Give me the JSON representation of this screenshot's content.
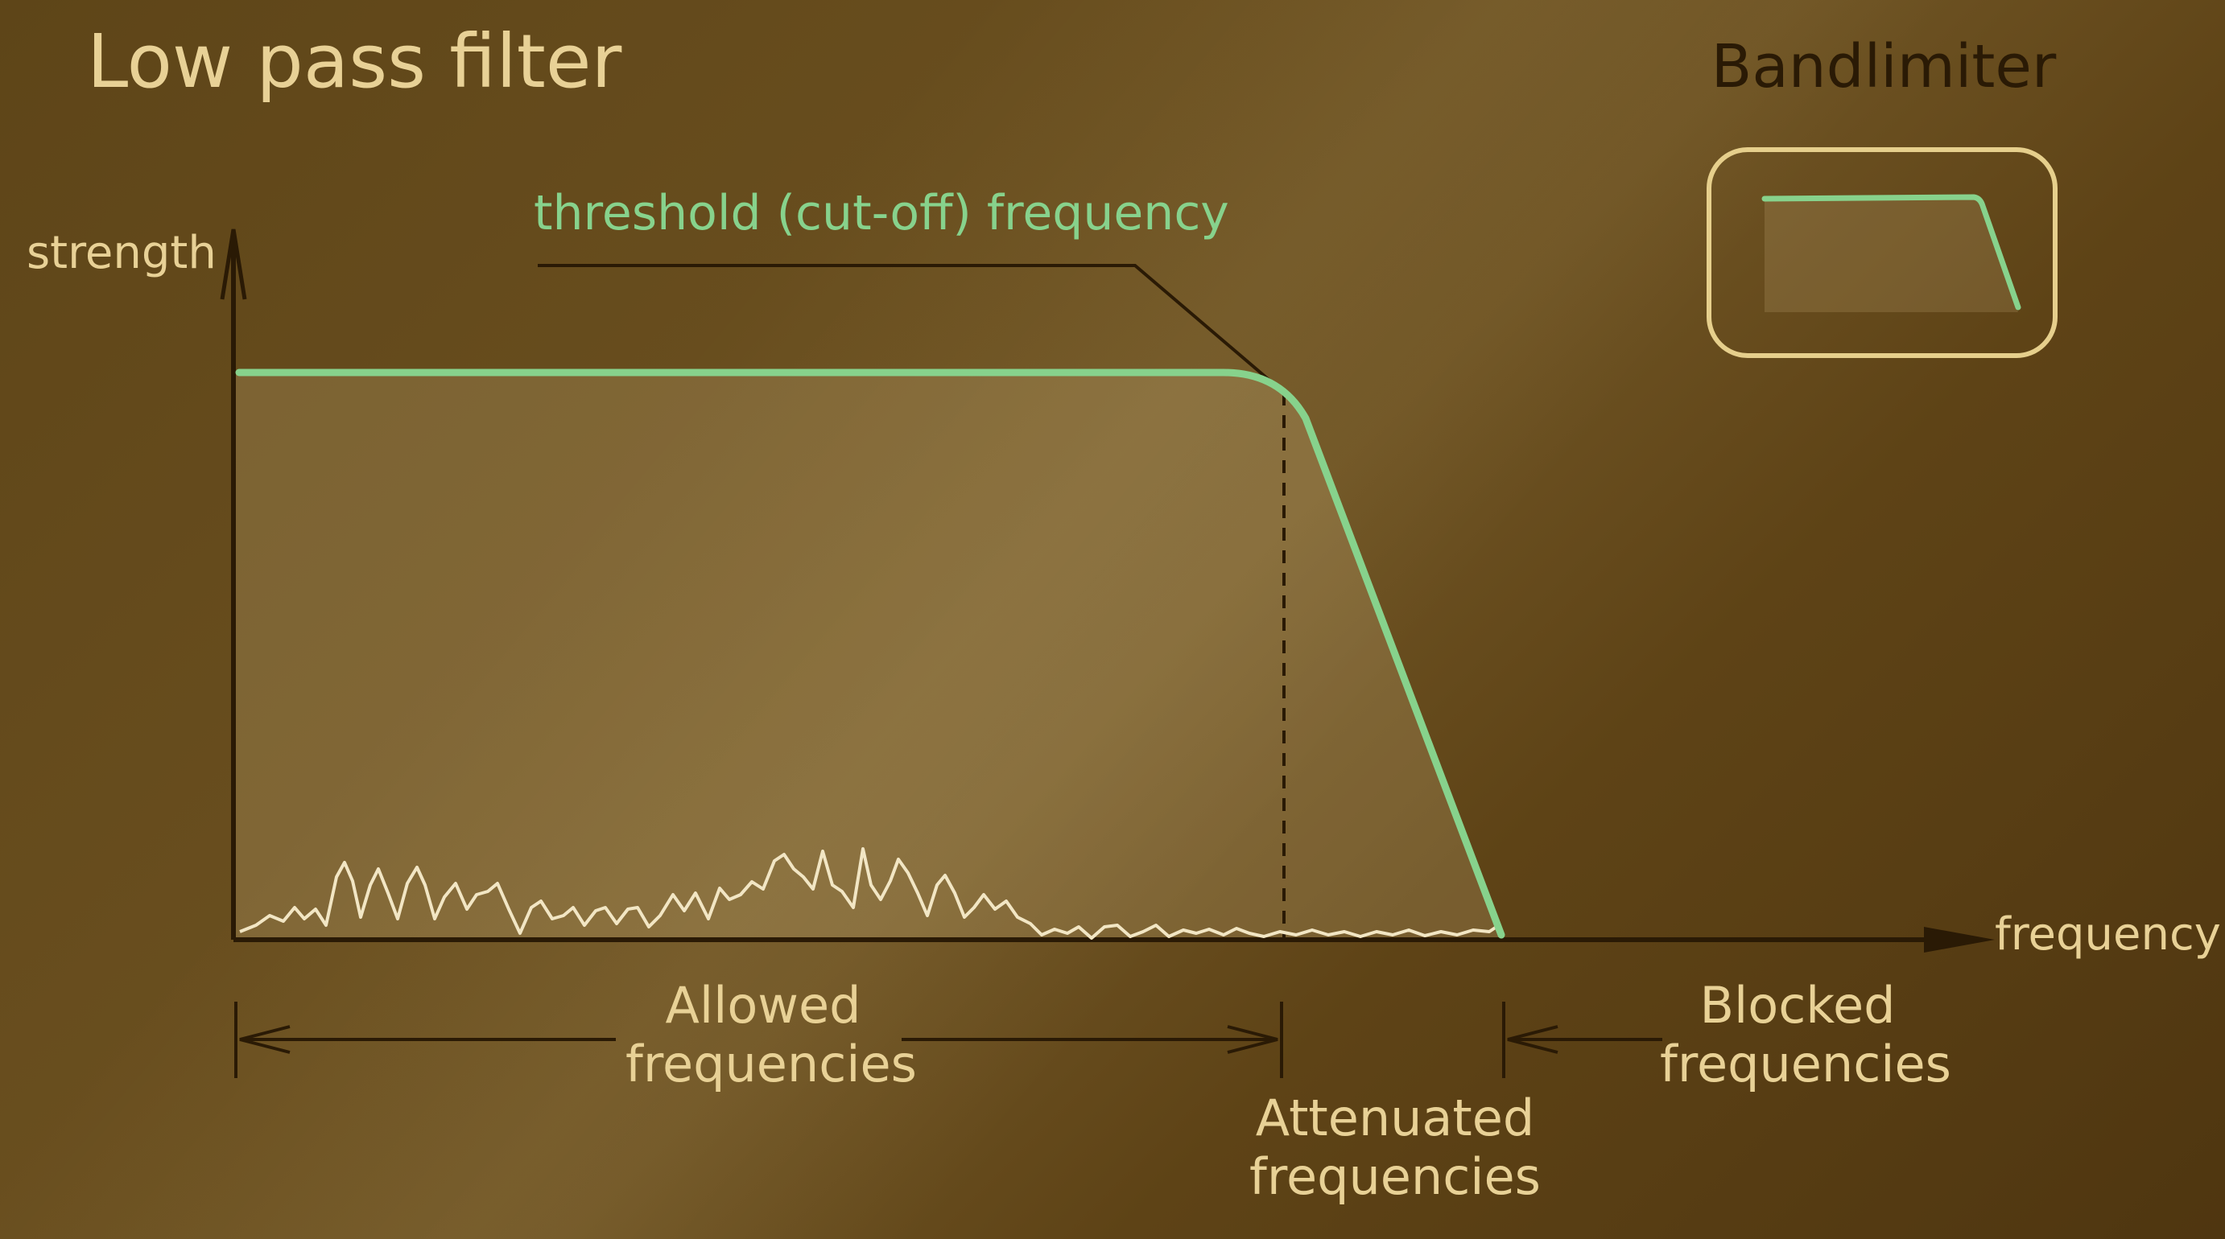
{
  "title": "Low pass filter",
  "axes": {
    "y_label": "strength",
    "x_label": "frequency"
  },
  "annotations": {
    "threshold": "threshold (cut-off) frequency"
  },
  "regions": {
    "allowed": {
      "line1": "Allowed",
      "line2": "frequencies"
    },
    "attenuated": {
      "line1": "Attenuated",
      "line2": "frequencies"
    },
    "blocked": {
      "line1": "Blocked",
      "line2": "frequencies"
    }
  },
  "inset": {
    "title": "Bandlimiter"
  },
  "colors": {
    "filter_curve": "#87d28c",
    "text": "#e8d196",
    "axis": "#2a1a05",
    "signal": "#f2e6c4",
    "inset_frame": "#e6cf8c"
  }
}
